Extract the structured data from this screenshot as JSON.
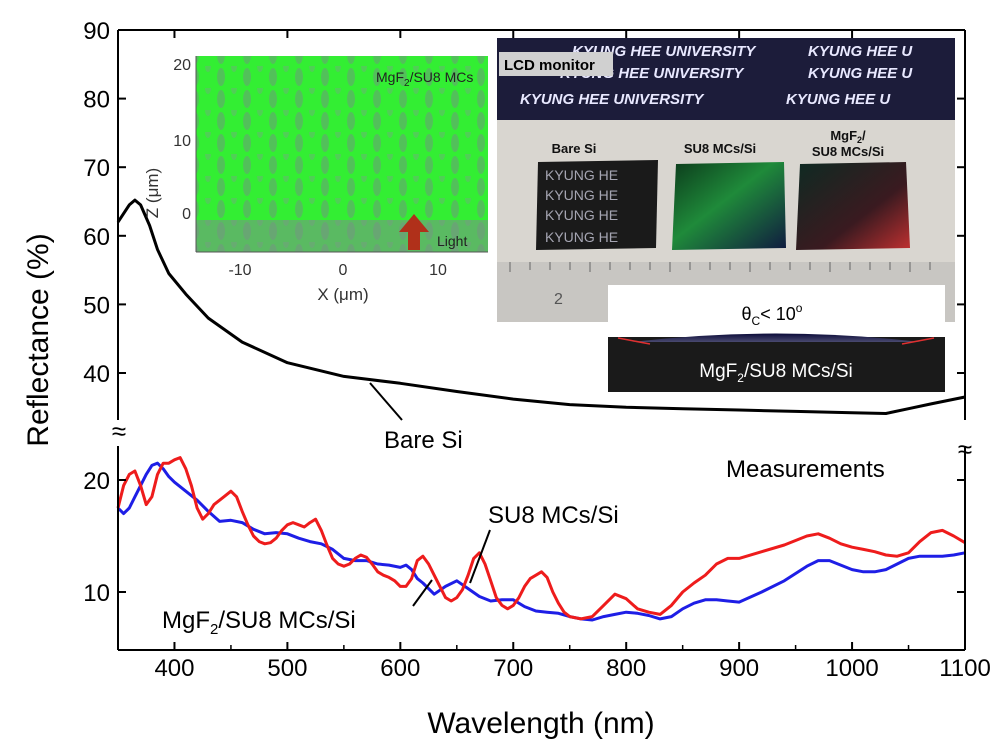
{
  "colors": {
    "bare_si": "#000000",
    "su8": "#ee1c1c",
    "mgf2": "#1e1ee6",
    "sim_bg": "#33ee33",
    "lcd_bg": "#1c1c3a",
    "photo_bg": "#d9d6d0",
    "inset_chip": "#1a1a1a"
  },
  "chart_data": {
    "type": "line",
    "xlabel": "Wavelength (nm)",
    "ylabel": "Reflectance (%)",
    "xlim": [
      350,
      1100
    ],
    "x_ticks": [
      "400",
      "500",
      "600",
      "700",
      "800",
      "900",
      "1000",
      "1100"
    ],
    "y_ticks_upper": [
      "40",
      "50",
      "60",
      "70",
      "80",
      "90"
    ],
    "y_ticks_lower": [
      "10",
      "20"
    ],
    "axis_break_mark": "≈",
    "broken_y_axis": true,
    "upper_ylim": [
      33,
      90
    ],
    "lower_ylim": [
      5,
      23.5
    ],
    "annotation": "Measurements",
    "series": [
      {
        "name": "Bare Si",
        "segment": "upper",
        "x": [
          350,
          360,
          365,
          370,
          378,
          385,
          395,
          410,
          430,
          460,
          500,
          550,
          600,
          650,
          700,
          750,
          800,
          850,
          900,
          950,
          1000,
          1030,
          1050,
          1070,
          1100
        ],
        "y": [
          62,
          64.5,
          65.2,
          64.5,
          61.5,
          58,
          54.5,
          51.5,
          48,
          44.5,
          41.5,
          39.5,
          38.5,
          37.3,
          36.2,
          35.4,
          35,
          34.8,
          34.6,
          34.4,
          34.2,
          34.1,
          34.8,
          35.5,
          36.5
        ]
      },
      {
        "name": "SU8 MCs/Si",
        "segment": "lower",
        "x": [
          350,
          355,
          360,
          365,
          370,
          375,
          380,
          385,
          390,
          395,
          400,
          405,
          410,
          415,
          420,
          425,
          430,
          435,
          440,
          445,
          450,
          455,
          460,
          465,
          470,
          475,
          480,
          485,
          490,
          495,
          500,
          505,
          510,
          515,
          520,
          525,
          530,
          535,
          540,
          545,
          550,
          555,
          560,
          565,
          570,
          575,
          580,
          585,
          590,
          595,
          600,
          605,
          610,
          615,
          620,
          625,
          630,
          635,
          640,
          645,
          650,
          655,
          660,
          665,
          670,
          675,
          680,
          685,
          690,
          695,
          700,
          705,
          710,
          715,
          720,
          725,
          730,
          735,
          740,
          745,
          750,
          760,
          770,
          780,
          790,
          800,
          810,
          820,
          830,
          840,
          850,
          860,
          870,
          880,
          890,
          900,
          920,
          940,
          960,
          970,
          980,
          990,
          1000,
          1010,
          1020,
          1030,
          1040,
          1050,
          1060,
          1070,
          1080,
          1090,
          1100
        ],
        "y": [
          17.5,
          19.5,
          20.5,
          20.8,
          19.5,
          17.8,
          18.5,
          20.5,
          21.5,
          21.5,
          21.8,
          22,
          21,
          19.5,
          17.5,
          16.5,
          17,
          17.8,
          18.2,
          18.6,
          19,
          18.5,
          17.2,
          16,
          15,
          14.5,
          14.3,
          14.4,
          14.8,
          15.5,
          16,
          16.2,
          16,
          15.8,
          16.2,
          16.5,
          15.5,
          14.2,
          13,
          12.5,
          12.3,
          12.5,
          13,
          13.3,
          13.1,
          12.5,
          11.8,
          11.5,
          11.3,
          11,
          10.5,
          10.5,
          11.2,
          12.8,
          13.2,
          12.5,
          11.5,
          10.5,
          9.5,
          9.2,
          9.5,
          10.2,
          11.5,
          13,
          13.5,
          12.5,
          11,
          9.5,
          8.8,
          8.5,
          8.8,
          9.5,
          10.5,
          11.2,
          11.5,
          11.8,
          11.3,
          10,
          9,
          8.2,
          7.8,
          7.6,
          7.8,
          8.8,
          9.8,
          9.4,
          8.5,
          8.2,
          8,
          8.8,
          10,
          10.8,
          11.5,
          12.5,
          13,
          13,
          13.6,
          14.2,
          15,
          15.2,
          14.8,
          14.3,
          14,
          13.8,
          13.6,
          13.3,
          13.2,
          13.5,
          14.5,
          15.3,
          15.5,
          15,
          14.4
        ]
      },
      {
        "name": "MgF2/SU8 MCs/Si",
        "segment": "lower",
        "x": [
          350,
          355,
          360,
          365,
          370,
          375,
          380,
          385,
          390,
          395,
          400,
          410,
          420,
          430,
          440,
          450,
          460,
          470,
          480,
          490,
          500,
          510,
          520,
          530,
          540,
          550,
          560,
          570,
          580,
          590,
          600,
          605,
          610,
          615,
          620,
          630,
          640,
          650,
          660,
          670,
          680,
          690,
          700,
          710,
          720,
          730,
          740,
          750,
          760,
          770,
          780,
          790,
          800,
          810,
          820,
          830,
          840,
          850,
          860,
          870,
          880,
          890,
          900,
          920,
          940,
          960,
          970,
          980,
          990,
          1000,
          1010,
          1020,
          1030,
          1040,
          1050,
          1060,
          1070,
          1080,
          1090,
          1100
        ],
        "y": [
          17.5,
          17,
          17.5,
          18.5,
          19.5,
          20.5,
          21.3,
          21.5,
          21,
          20.3,
          19.8,
          19,
          18.2,
          17.2,
          16.3,
          16.4,
          16.2,
          15.6,
          15.2,
          15.3,
          15.2,
          14.8,
          14.5,
          14.3,
          13.8,
          13,
          12.8,
          12.8,
          12.5,
          12.4,
          12.2,
          12.4,
          12,
          11.2,
          10.8,
          9.8,
          10.5,
          11,
          10.3,
          9.6,
          9.2,
          9.3,
          9.3,
          8.7,
          8.3,
          8.2,
          8.1,
          7.8,
          7.6,
          7.5,
          7.8,
          8,
          8.2,
          8.1,
          7.9,
          7.6,
          7.8,
          8.5,
          9,
          9.3,
          9.3,
          9.2,
          9.1,
          10,
          11,
          12.3,
          12.8,
          12.8,
          12.4,
          12,
          11.8,
          11.8,
          12,
          12.5,
          13,
          13.2,
          13.2,
          13.2,
          13.3,
          13.5
        ]
      }
    ]
  },
  "series_labels": {
    "bare_si": "Bare Si",
    "su8": "SU8 MCs/Si",
    "mgf2_prefix": "MgF",
    "mgf2_sub": "2",
    "mgf2_suffix": "/SU8 MCs/Si"
  },
  "inset_simulation": {
    "label_prefix": "MgF",
    "label_sub": "2",
    "label_suffix": "/SU8 MCs",
    "light_label": "Light",
    "xlabel": "X (μm)",
    "ylabel": "Z (μm)",
    "x_ticks": [
      "-10",
      "0",
      "10"
    ],
    "y_ticks": [
      "0",
      "10",
      "20"
    ]
  },
  "inset_photo": {
    "monitor_label": "LCD monitor",
    "banner_text": "KYUNG HEE UNIVERSITY",
    "banner_text_2": "KYUNG HEE U",
    "sample_labels": [
      "Bare Si",
      "SU8 MCs/Si"
    ],
    "sample_3_line1": "MgF",
    "sample_3_sub": "2",
    "sample_3_line1_end": "/",
    "sample_3_line2": "SU8 MCs/Si",
    "chip_text": "KYUNG HE",
    "ruler_mark": "2"
  },
  "inset_contact": {
    "angle_prefix": "θ",
    "angle_sub": "C",
    "angle_text": "< 10",
    "angle_sup": "o",
    "label_prefix": "MgF",
    "label_sub": "2",
    "label_suffix": "/SU8 MCs/Si"
  }
}
